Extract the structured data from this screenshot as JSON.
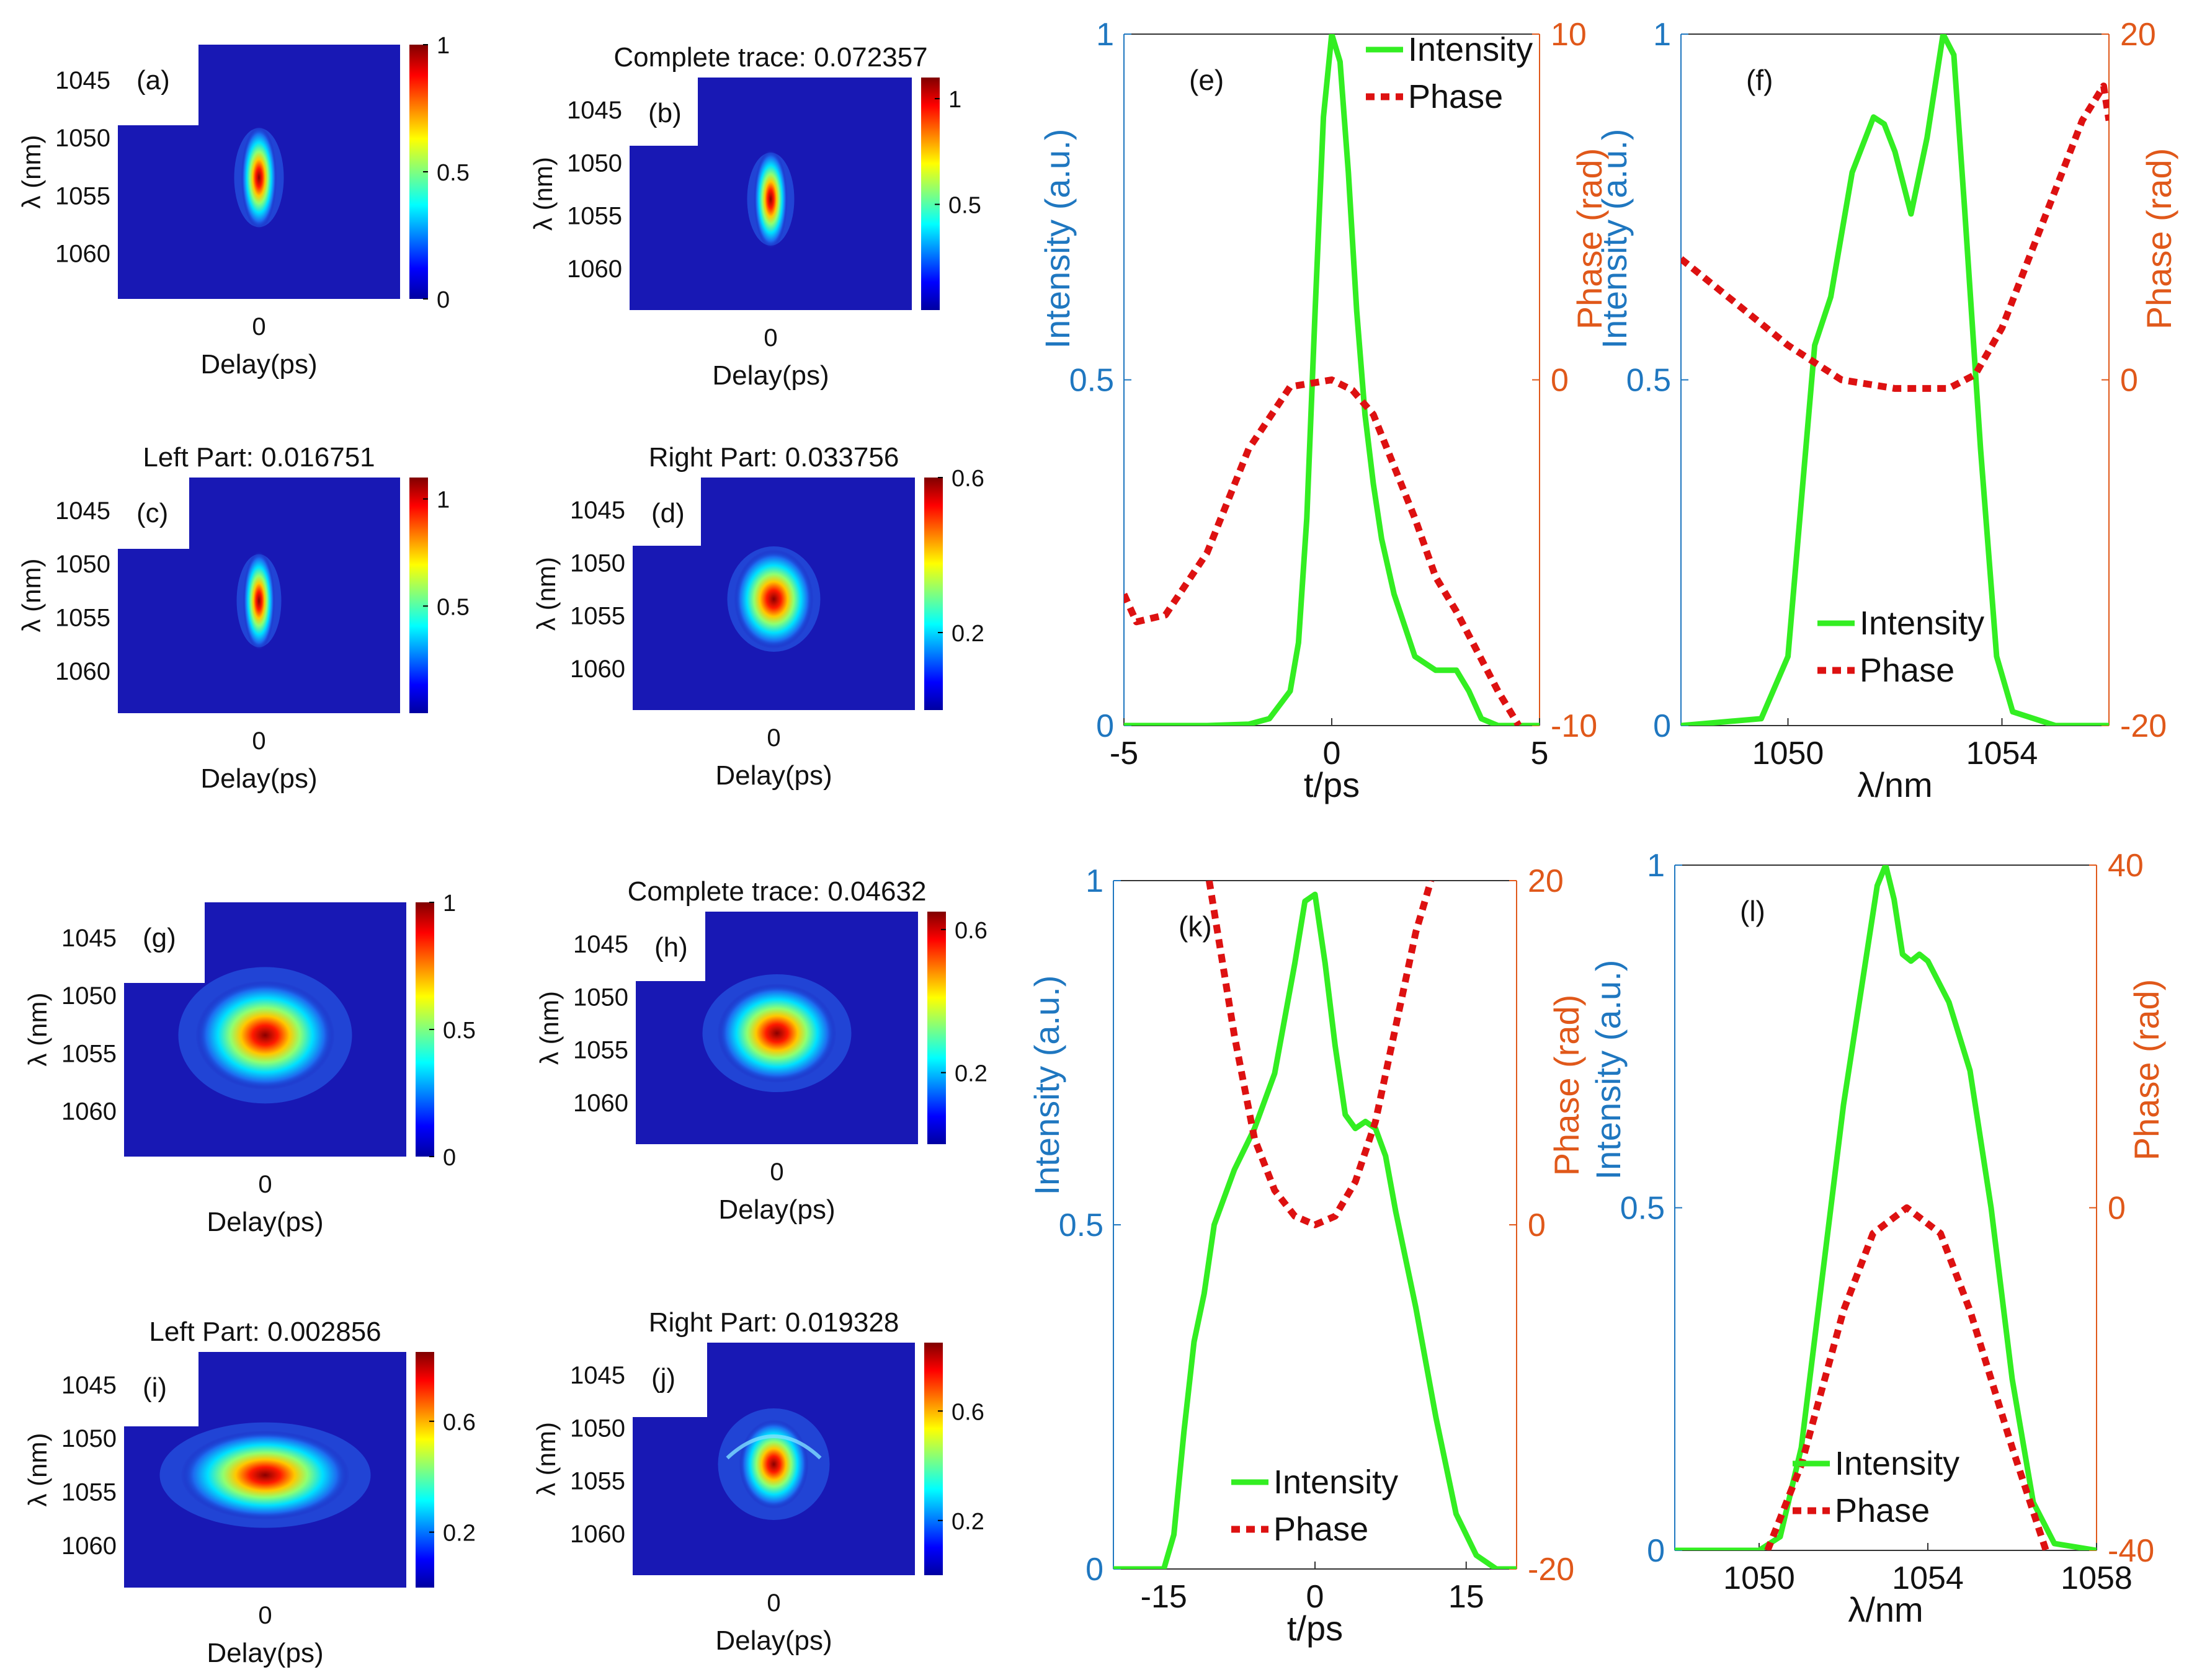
{
  "colors": {
    "intensity": "#33ee22",
    "phase": "#dd1111",
    "left_axis": "#1f77c0",
    "right_axis": "#e0581a",
    "heatmap_background": "#1818b4",
    "text": "#111111"
  },
  "chart_data": [
    {
      "id": "a",
      "type": "heatmap",
      "panel_label": "(a)",
      "title": "",
      "xlabel": "Delay(ps)",
      "ylabel": "λ (nm)",
      "x_ticks": [
        "0"
      ],
      "y_ticks": [
        "1045",
        "1050",
        "1055",
        "1060"
      ],
      "colorbar_ticks": [
        "1",
        "0.5",
        "0"
      ],
      "colorbar_range": [
        0,
        1
      ],
      "spots": [
        {
          "delay": 0,
          "wavelength_nm": 1053.5,
          "peak": 1.0
        }
      ]
    },
    {
      "id": "b",
      "type": "heatmap",
      "panel_label": "(b)",
      "title": "Complete trace: 0.072357",
      "xlabel": "Delay(ps)",
      "ylabel": "λ (nm)",
      "x_ticks": [
        "0"
      ],
      "y_ticks": [
        "1045",
        "1050",
        "1055",
        "1060"
      ],
      "colorbar_ticks": [
        "1",
        "0.5"
      ],
      "colorbar_range": [
        0,
        1.1
      ],
      "spots": [
        {
          "delay": 0,
          "wavelength_nm": 1053.5,
          "peak": 1.0
        }
      ]
    },
    {
      "id": "c",
      "type": "heatmap",
      "panel_label": "(c)",
      "title": "Left Part: 0.016751",
      "xlabel": "Delay(ps)",
      "ylabel": "λ (nm)",
      "x_ticks": [
        "0"
      ],
      "y_ticks": [
        "1045",
        "1050",
        "1055",
        "1060"
      ],
      "colorbar_ticks": [
        "1",
        "0.5"
      ],
      "colorbar_range": [
        0,
        1.1
      ],
      "spots": [
        {
          "delay": 0,
          "wavelength_nm": 1053.5,
          "peak": 1.0
        }
      ]
    },
    {
      "id": "d",
      "type": "heatmap",
      "panel_label": "(d)",
      "title": "Right Part: 0.033756",
      "xlabel": "Delay(ps)",
      "ylabel": "λ (nm)",
      "x_ticks": [
        "0"
      ],
      "y_ticks": [
        "1045",
        "1050",
        "1055",
        "1060"
      ],
      "colorbar_ticks": [
        "0.6",
        "0.2"
      ],
      "colorbar_range": [
        0,
        0.6
      ],
      "spots": [
        {
          "delay": 0,
          "wavelength_nm": 1053.5,
          "peak": 1.0
        }
      ]
    },
    {
      "id": "e",
      "type": "line",
      "panel_label": "(e)",
      "title": "",
      "xlabel": "t/ps",
      "ylabel_left": "Intensity (a.u.)",
      "ylabel_right": "Phase (rad)",
      "xlim": [
        -5,
        5
      ],
      "ylim_left": [
        0,
        1
      ],
      "ylim_right": [
        -10,
        10
      ],
      "x_ticks": [
        "-5",
        "0",
        "5"
      ],
      "y_ticks_left": [
        "0",
        "0.5",
        "1"
      ],
      "y_ticks_right": [
        "-10",
        "0",
        "10"
      ],
      "legend": [
        "Intensity",
        "Phase"
      ],
      "legend_position": "top-right",
      "series": [
        {
          "name": "Intensity",
          "axis": "left",
          "x": [
            -5,
            -3,
            -2,
            -1.5,
            -1,
            -0.8,
            -0.6,
            -0.4,
            -0.2,
            0,
            0.2,
            0.4,
            0.6,
            0.8,
            1,
            1.2,
            1.5,
            2,
            2.5,
            3,
            3.3,
            3.6,
            4,
            5
          ],
          "y": [
            0,
            0,
            0.002,
            0.01,
            0.05,
            0.12,
            0.3,
            0.6,
            0.88,
            1.0,
            0.96,
            0.8,
            0.6,
            0.45,
            0.35,
            0.27,
            0.19,
            0.1,
            0.08,
            0.08,
            0.05,
            0.01,
            0,
            0
          ]
        },
        {
          "name": "Phase",
          "axis": "right",
          "x": [
            -5,
            -4.7,
            -4,
            -3,
            -2,
            -1,
            -0.5,
            0,
            0.5,
            1,
            2,
            2.5,
            3,
            4,
            4.5
          ],
          "y": [
            -6.2,
            -7.0,
            -6.8,
            -5.0,
            -2.0,
            -0.2,
            -0.1,
            0,
            -0.3,
            -1.0,
            -4.0,
            -5.7,
            -6.7,
            -9.0,
            -10
          ]
        }
      ]
    },
    {
      "id": "f",
      "type": "line",
      "panel_label": "(f)",
      "title": "",
      "xlabel": "λ/nm",
      "ylabel_left": "Intensity (a.u.)",
      "ylabel_right": "Phase (rad)",
      "xlim": [
        1048,
        1056
      ],
      "ylim_left": [
        0,
        1
      ],
      "ylim_right": [
        -20,
        20
      ],
      "x_ticks": [
        "1050",
        "1054"
      ],
      "y_ticks_left": [
        "0",
        "0.5",
        "1"
      ],
      "y_ticks_right": [
        "-20",
        "0",
        "20"
      ],
      "legend": [
        "Intensity",
        "Phase"
      ],
      "legend_position": "bottom-right",
      "series": [
        {
          "name": "Intensity",
          "axis": "left",
          "x": [
            1048,
            1049.5,
            1050,
            1050.5,
            1050.8,
            1051.2,
            1051.6,
            1051.8,
            1052,
            1052.3,
            1052.6,
            1052.9,
            1053.1,
            1053.3,
            1053.6,
            1053.9,
            1054.2,
            1055,
            1056
          ],
          "y": [
            0,
            0.01,
            0.1,
            0.55,
            0.62,
            0.8,
            0.88,
            0.87,
            0.83,
            0.74,
            0.85,
            1.0,
            0.97,
            0.75,
            0.4,
            0.1,
            0.02,
            0,
            0
          ]
        },
        {
          "name": "Phase",
          "axis": "right",
          "x": [
            1048,
            1049,
            1050,
            1051,
            1052,
            1053,
            1053.5,
            1054,
            1054.5,
            1055,
            1055.5,
            1055.9,
            1056
          ],
          "y": [
            7,
            4.5,
            2,
            0,
            -0.5,
            -0.5,
            0.3,
            3,
            7,
            11,
            15,
            17,
            15
          ]
        }
      ]
    },
    {
      "id": "g",
      "type": "heatmap",
      "panel_label": "(g)",
      "title": "",
      "xlabel": "Delay(ps)",
      "ylabel": "λ (nm)",
      "x_ticks": [
        "0"
      ],
      "y_ticks": [
        "1045",
        "1050",
        "1055",
        "1060"
      ],
      "colorbar_ticks": [
        "1",
        "0.5",
        "0"
      ],
      "colorbar_range": [
        0,
        1
      ],
      "spots": [
        {
          "delay": 0,
          "wavelength_nm": 1053.5,
          "peak": 1.0
        }
      ]
    },
    {
      "id": "h",
      "type": "heatmap",
      "panel_label": "(h)",
      "title": "Complete trace: 0.04632",
      "xlabel": "Delay(ps)",
      "ylabel": "λ (nm)",
      "x_ticks": [
        "0"
      ],
      "y_ticks": [
        "1045",
        "1050",
        "1055",
        "1060"
      ],
      "colorbar_ticks": [
        "0.6",
        "0.2"
      ],
      "colorbar_range": [
        0,
        0.65
      ],
      "spots": [
        {
          "delay": 0,
          "wavelength_nm": 1053.5,
          "peak": 1.0
        }
      ]
    },
    {
      "id": "i",
      "type": "heatmap",
      "panel_label": "(i)",
      "title": "Left Part: 0.002856",
      "xlabel": "Delay(ps)",
      "ylabel": "λ (nm)",
      "x_ticks": [
        "0"
      ],
      "y_ticks": [
        "1045",
        "1050",
        "1055",
        "1060"
      ],
      "colorbar_ticks": [
        "0.6",
        "0.2"
      ],
      "colorbar_range": [
        0,
        0.85
      ],
      "spots": [
        {
          "delay": 0,
          "wavelength_nm": 1053.5,
          "peak": 1.0
        }
      ]
    },
    {
      "id": "j",
      "type": "heatmap",
      "panel_label": "(j)",
      "title": "Right Part: 0.019328",
      "xlabel": "Delay(ps)",
      "ylabel": "λ (nm)",
      "x_ticks": [
        "0"
      ],
      "y_ticks": [
        "1045",
        "1050",
        "1055",
        "1060"
      ],
      "colorbar_ticks": [
        "0.6",
        "0.2"
      ],
      "colorbar_range": [
        0,
        0.85
      ],
      "spots": [
        {
          "delay": 0,
          "wavelength_nm": 1053.5,
          "peak": 1.0
        }
      ]
    },
    {
      "id": "k",
      "type": "line",
      "panel_label": "(k)",
      "title": "",
      "xlabel": "t/ps",
      "ylabel_left": "Intensity (a.u.)",
      "ylabel_right": "Phase (rad)",
      "xlim": [
        -20,
        20
      ],
      "ylim_left": [
        0,
        1
      ],
      "ylim_right": [
        -20,
        20
      ],
      "x_ticks": [
        "-15",
        "0",
        "15"
      ],
      "y_ticks_left": [
        "0",
        "0.5",
        "1"
      ],
      "y_ticks_right": [
        "-20",
        "0",
        "20"
      ],
      "legend": [
        "Intensity",
        "Phase"
      ],
      "legend_position": "bottom-center",
      "series": [
        {
          "name": "Intensity",
          "axis": "left",
          "x": [
            -20,
            -15,
            -14,
            -13,
            -12,
            -11,
            -10,
            -8,
            -6,
            -4,
            -2,
            -1,
            0,
            1,
            2,
            3,
            4,
            5,
            6,
            7,
            8,
            10,
            12,
            14,
            16,
            18,
            20
          ],
          "y": [
            0,
            0,
            0.05,
            0.2,
            0.33,
            0.4,
            0.5,
            0.58,
            0.64,
            0.72,
            0.88,
            0.97,
            0.98,
            0.88,
            0.76,
            0.66,
            0.64,
            0.65,
            0.64,
            0.6,
            0.52,
            0.38,
            0.22,
            0.08,
            0.02,
            0,
            0
          ]
        },
        {
          "name": "Phase",
          "axis": "right",
          "x": [
            -10.5,
            -8,
            -6,
            -4,
            -2,
            0,
            2,
            4,
            6,
            8,
            10,
            11.5
          ],
          "y": [
            20,
            11,
            5,
            2,
            0.5,
            0,
            0.5,
            2.5,
            6,
            11.5,
            17,
            20
          ]
        }
      ]
    },
    {
      "id": "l",
      "type": "line",
      "panel_label": "(l)",
      "title": "",
      "xlabel": "λ/nm",
      "ylabel_left": "Intensity (a.u.)",
      "ylabel_right": "Phase (rad)",
      "xlim": [
        1048,
        1058
      ],
      "ylim_left": [
        0,
        1
      ],
      "ylim_right": [
        -40,
        40
      ],
      "x_ticks": [
        "1050",
        "1054",
        "1058"
      ],
      "y_ticks_left": [
        "0",
        "0.5",
        "1"
      ],
      "y_ticks_right": [
        "-40",
        "0",
        "40"
      ],
      "legend": [
        "Intensity",
        "Phase"
      ],
      "legend_position": "bottom-center",
      "series": [
        {
          "name": "Intensity",
          "axis": "left",
          "x": [
            1048,
            1050,
            1050.5,
            1051,
            1051.5,
            1052,
            1052.5,
            1052.8,
            1053,
            1053.2,
            1053.4,
            1053.6,
            1053.8,
            1054,
            1054.5,
            1055,
            1055.5,
            1056,
            1056.5,
            1057,
            1058
          ],
          "y": [
            0,
            0,
            0.02,
            0.15,
            0.4,
            0.65,
            0.85,
            0.97,
            1.0,
            0.95,
            0.87,
            0.86,
            0.87,
            0.86,
            0.8,
            0.7,
            0.5,
            0.25,
            0.07,
            0.01,
            0
          ]
        },
        {
          "name": "Phase",
          "axis": "right",
          "x": [
            1050.2,
            1051,
            1052,
            1052.7,
            1053.5,
            1054.3,
            1055,
            1056,
            1056.8
          ],
          "y": [
            -40,
            -30,
            -12,
            -3,
            0,
            -3,
            -12,
            -28,
            -40
          ]
        }
      ]
    }
  ]
}
